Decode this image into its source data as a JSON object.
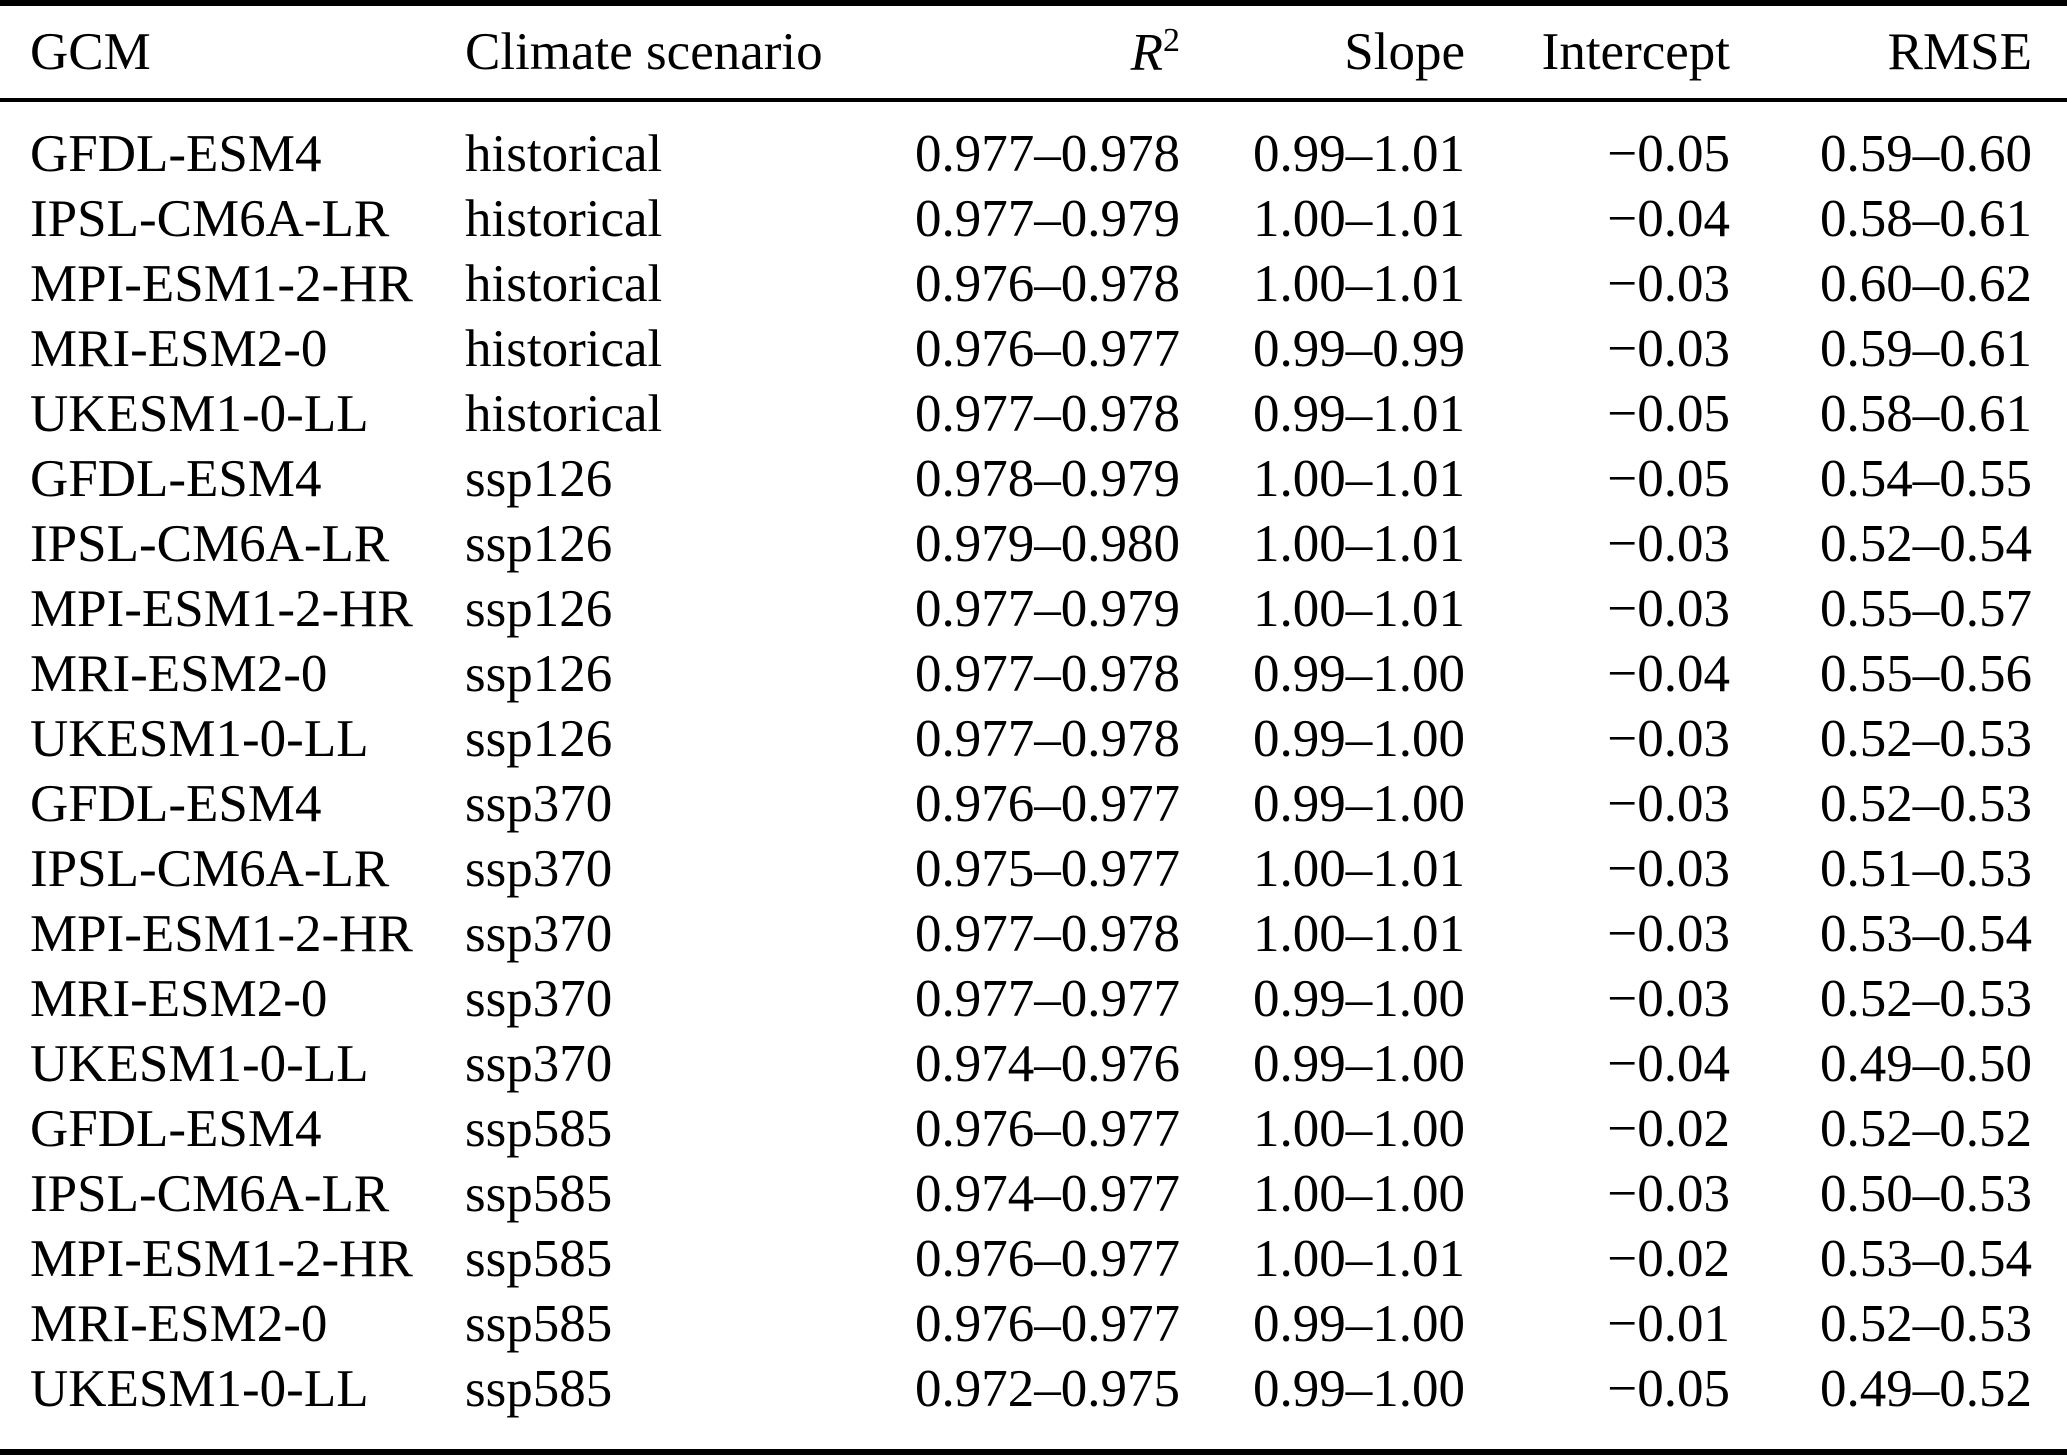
{
  "colors": {
    "text": "#000000",
    "background": "#ffffff",
    "rule": "#000000"
  },
  "table": {
    "columns": [
      {
        "label": "GCM",
        "align": "left"
      },
      {
        "label": "Climate scenario",
        "align": "left"
      },
      {
        "label": "R",
        "sup": "2",
        "align": "right"
      },
      {
        "label": "Slope",
        "align": "right"
      },
      {
        "label": "Intercept",
        "align": "right"
      },
      {
        "label": "RMSE",
        "align": "right"
      }
    ],
    "rows": [
      {
        "gcm": "GFDL-ESM4",
        "scenario": "historical",
        "r2": "0.977–0.978",
        "slope": "0.99–1.01",
        "intercept": "−0.05",
        "rmse": "0.59–0.60"
      },
      {
        "gcm": "IPSL-CM6A-LR",
        "scenario": "historical",
        "r2": "0.977–0.979",
        "slope": "1.00–1.01",
        "intercept": "−0.04",
        "rmse": "0.58–0.61"
      },
      {
        "gcm": "MPI-ESM1-2-HR",
        "scenario": "historical",
        "r2": "0.976–0.978",
        "slope": "1.00–1.01",
        "intercept": "−0.03",
        "rmse": "0.60–0.62"
      },
      {
        "gcm": "MRI-ESM2-0",
        "scenario": "historical",
        "r2": "0.976–0.977",
        "slope": "0.99–0.99",
        "intercept": "−0.03",
        "rmse": "0.59–0.61"
      },
      {
        "gcm": "UKESM1-0-LL",
        "scenario": "historical",
        "r2": "0.977–0.978",
        "slope": "0.99–1.01",
        "intercept": "−0.05",
        "rmse": "0.58–0.61"
      },
      {
        "gcm": "GFDL-ESM4",
        "scenario": "ssp126",
        "r2": "0.978–0.979",
        "slope": "1.00–1.01",
        "intercept": "−0.05",
        "rmse": "0.54–0.55"
      },
      {
        "gcm": "IPSL-CM6A-LR",
        "scenario": "ssp126",
        "r2": "0.979–0.980",
        "slope": "1.00–1.01",
        "intercept": "−0.03",
        "rmse": "0.52–0.54"
      },
      {
        "gcm": "MPI-ESM1-2-HR",
        "scenario": "ssp126",
        "r2": "0.977–0.979",
        "slope": "1.00–1.01",
        "intercept": "−0.03",
        "rmse": "0.55–0.57"
      },
      {
        "gcm": "MRI-ESM2-0",
        "scenario": "ssp126",
        "r2": "0.977–0.978",
        "slope": "0.99–1.00",
        "intercept": "−0.04",
        "rmse": "0.55–0.56"
      },
      {
        "gcm": "UKESM1-0-LL",
        "scenario": "ssp126",
        "r2": "0.977–0.978",
        "slope": "0.99–1.00",
        "intercept": "−0.03",
        "rmse": "0.52–0.53"
      },
      {
        "gcm": "GFDL-ESM4",
        "scenario": "ssp370",
        "r2": "0.976–0.977",
        "slope": "0.99–1.00",
        "intercept": "−0.03",
        "rmse": "0.52–0.53"
      },
      {
        "gcm": "IPSL-CM6A-LR",
        "scenario": "ssp370",
        "r2": "0.975–0.977",
        "slope": "1.00–1.01",
        "intercept": "−0.03",
        "rmse": "0.51–0.53"
      },
      {
        "gcm": "MPI-ESM1-2-HR",
        "scenario": "ssp370",
        "r2": "0.977–0.978",
        "slope": "1.00–1.01",
        "intercept": "−0.03",
        "rmse": "0.53–0.54"
      },
      {
        "gcm": "MRI-ESM2-0",
        "scenario": "ssp370",
        "r2": "0.977–0.977",
        "slope": "0.99–1.00",
        "intercept": "−0.03",
        "rmse": "0.52–0.53"
      },
      {
        "gcm": "UKESM1-0-LL",
        "scenario": "ssp370",
        "r2": "0.974–0.976",
        "slope": "0.99–1.00",
        "intercept": "−0.04",
        "rmse": "0.49–0.50"
      },
      {
        "gcm": "GFDL-ESM4",
        "scenario": "ssp585",
        "r2": "0.976–0.977",
        "slope": "1.00–1.00",
        "intercept": "−0.02",
        "rmse": "0.52–0.52"
      },
      {
        "gcm": "IPSL-CM6A-LR",
        "scenario": "ssp585",
        "r2": "0.974–0.977",
        "slope": "1.00–1.00",
        "intercept": "−0.03",
        "rmse": "0.50–0.53"
      },
      {
        "gcm": "MPI-ESM1-2-HR",
        "scenario": "ssp585",
        "r2": "0.976–0.977",
        "slope": "1.00–1.01",
        "intercept": "−0.02",
        "rmse": "0.53–0.54"
      },
      {
        "gcm": "MRI-ESM2-0",
        "scenario": "ssp585",
        "r2": "0.976–0.977",
        "slope": "0.99–1.00",
        "intercept": "−0.01",
        "rmse": "0.52–0.53"
      },
      {
        "gcm": "UKESM1-0-LL",
        "scenario": "ssp585",
        "r2": "0.972–0.975",
        "slope": "0.99–1.00",
        "intercept": "−0.05",
        "rmse": "0.49–0.52"
      }
    ]
  }
}
